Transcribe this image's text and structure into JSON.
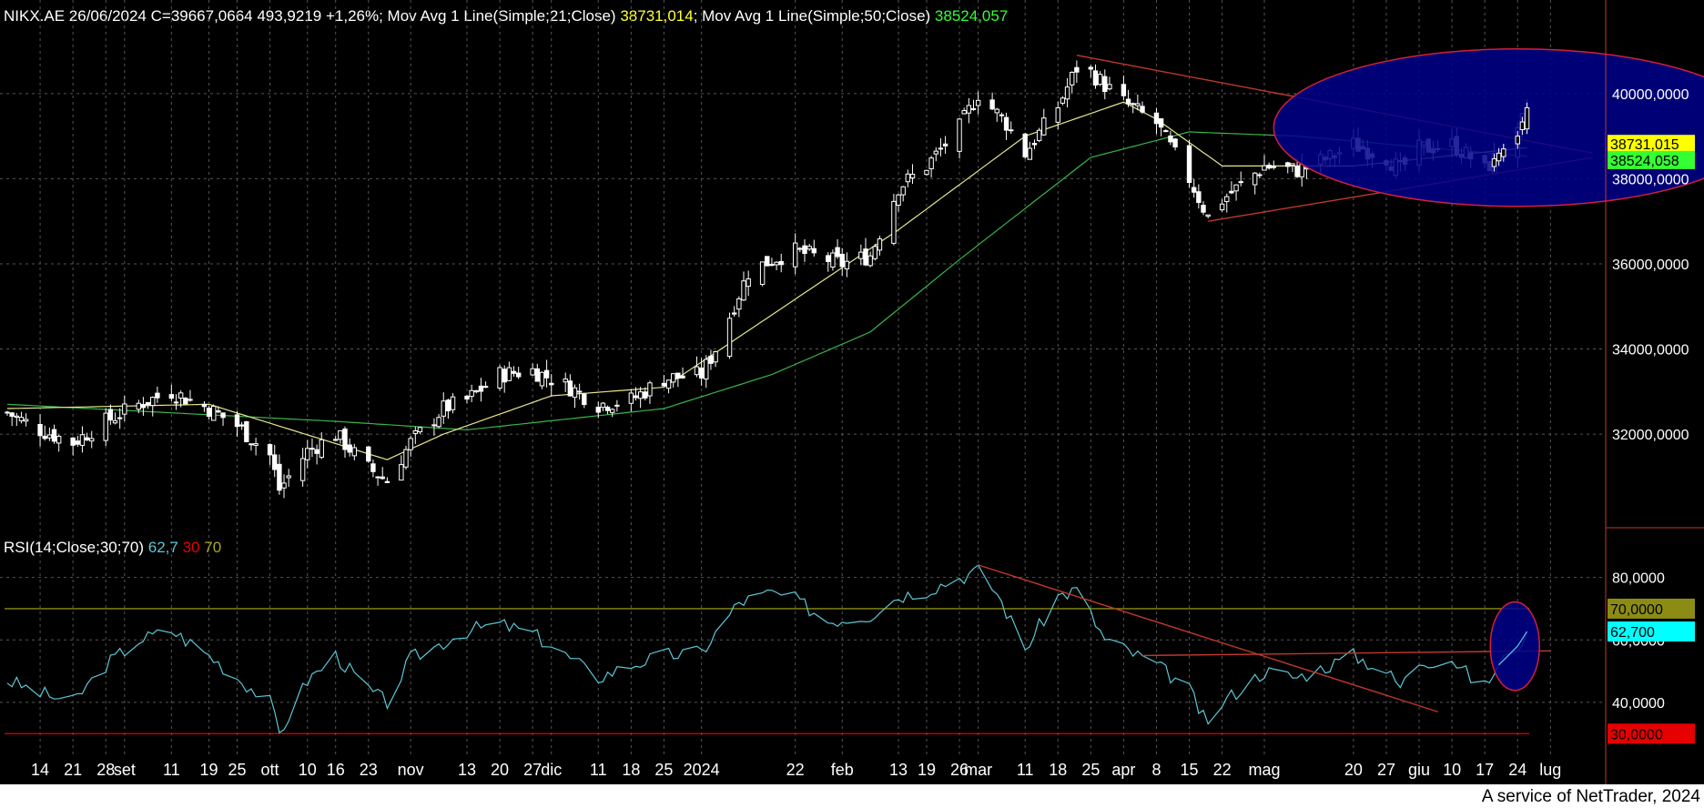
{
  "header": {
    "symbol_line": "NIKX.AE 26/06/2024 C=39667,0664 493,9219 +1,26%",
    "ma21_label": "; Mov Avg 1 Line(Simple;21;Close)",
    "ma21_value": "38731,014",
    "ma50_label": "; Mov Avg 1 Line(Simple;50;Close)",
    "ma50_value": "38524,057"
  },
  "rsi_header": {
    "label": "RSI(14;Close;30;70)",
    "value": "62,7",
    "low": "30",
    "high": "70"
  },
  "footer_text": "A service of NetTrader, 2024",
  "colors": {
    "background": "#000000",
    "candle": "#ffffff",
    "ma21": "#e6e68c",
    "ma50": "#39b54a",
    "trendline": "#c0392b",
    "highlight_fill": "#00008b",
    "highlight_stroke": "#d21f3c",
    "rsi_line": "#5bc8d6",
    "rsi_70": "#8c8c14",
    "rsi_30": "#e60000",
    "grid": "#555555"
  },
  "chart_data": [
    {
      "type": "candlestick",
      "title": "NIKX.AE",
      "ylim": [
        29800,
        41600
      ],
      "y_ticks": [
        32000,
        34000,
        36000,
        38000,
        40000
      ],
      "y_tick_labels": [
        "32000,0000",
        "34000,0000",
        "36000,0000",
        "38000,0000",
        "40000,0000"
      ],
      "grid": true,
      "x_labels": [
        {
          "label": "14",
          "date": "2023-08-14"
        },
        {
          "label": "21",
          "date": "2023-08-21"
        },
        {
          "label": "28",
          "date": "2023-08-28"
        },
        {
          "label": "set",
          "date": "2023-09-01"
        },
        {
          "label": "11",
          "date": "2023-09-11"
        },
        {
          "label": "19",
          "date": "2023-09-19"
        },
        {
          "label": "25",
          "date": "2023-09-25"
        },
        {
          "label": "ott",
          "date": "2023-10-02"
        },
        {
          "label": "10",
          "date": "2023-10-10"
        },
        {
          "label": "16",
          "date": "2023-10-16"
        },
        {
          "label": "23",
          "date": "2023-10-23"
        },
        {
          "label": "nov",
          "date": "2023-11-01"
        },
        {
          "label": "13",
          "date": "2023-11-13"
        },
        {
          "label": "20",
          "date": "2023-11-20"
        },
        {
          "label": "27",
          "date": "2023-11-27"
        },
        {
          "label": "dic",
          "date": "2023-12-01"
        },
        {
          "label": "11",
          "date": "2023-12-11"
        },
        {
          "label": "18",
          "date": "2023-12-18"
        },
        {
          "label": "25",
          "date": "2023-12-25"
        },
        {
          "label": "2024",
          "date": "2024-01-02"
        },
        {
          "label": "22",
          "date": "2024-01-22"
        },
        {
          "label": "feb",
          "date": "2024-02-01"
        },
        {
          "label": "13",
          "date": "2024-02-13"
        },
        {
          "label": "19",
          "date": "2024-02-19"
        },
        {
          "label": "26",
          "date": "2024-02-26"
        },
        {
          "label": "mar",
          "date": "2024-03-01"
        },
        {
          "label": "11",
          "date": "2024-03-11"
        },
        {
          "label": "18",
          "date": "2024-03-18"
        },
        {
          "label": "25",
          "date": "2024-03-25"
        },
        {
          "label": "apr",
          "date": "2024-04-01"
        },
        {
          "label": "8",
          "date": "2024-04-08"
        },
        {
          "label": "15",
          "date": "2024-04-15"
        },
        {
          "label": "22",
          "date": "2024-04-22"
        },
        {
          "label": "mag",
          "date": "2024-05-01"
        },
        {
          "label": "20",
          "date": "2024-05-20"
        },
        {
          "label": "27",
          "date": "2024-05-27"
        },
        {
          "label": "giu",
          "date": "2024-06-03"
        },
        {
          "label": "10",
          "date": "2024-06-10"
        },
        {
          "label": "17",
          "date": "2024-06-17"
        },
        {
          "label": "24",
          "date": "2024-06-24"
        },
        {
          "label": "lug",
          "date": "2024-07-01"
        }
      ],
      "close_anchors": [
        [
          "2023-08-07",
          32500
        ],
        [
          "2023-08-14",
          32100
        ],
        [
          "2023-08-21",
          31800
        ],
        [
          "2023-08-28",
          32300
        ],
        [
          "2023-09-04",
          32700
        ],
        [
          "2023-09-11",
          33000
        ],
        [
          "2023-09-19",
          32600
        ],
        [
          "2023-09-25",
          32200
        ],
        [
          "2023-10-02",
          31500
        ],
        [
          "2023-10-04",
          30700
        ],
        [
          "2023-10-10",
          31600
        ],
        [
          "2023-10-16",
          32000
        ],
        [
          "2023-10-23",
          31200
        ],
        [
          "2023-10-27",
          30900
        ],
        [
          "2023-11-01",
          31800
        ],
        [
          "2023-11-08",
          32600
        ],
        [
          "2023-11-13",
          32800
        ],
        [
          "2023-11-20",
          33400
        ],
        [
          "2023-11-27",
          33500
        ],
        [
          "2023-12-01",
          33300
        ],
        [
          "2023-12-05",
          33100
        ],
        [
          "2023-12-11",
          32700
        ],
        [
          "2023-12-18",
          32800
        ],
        [
          "2023-12-25",
          33300
        ],
        [
          "2024-01-02",
          33400
        ],
        [
          "2024-01-05",
          34000
        ],
        [
          "2024-01-12",
          35800
        ],
        [
          "2024-01-17",
          36100
        ],
        [
          "2024-01-22",
          36300
        ],
        [
          "2024-01-29",
          36100
        ],
        [
          "2024-02-01",
          36000
        ],
        [
          "2024-02-07",
          36200
        ],
        [
          "2024-02-13",
          37800
        ],
        [
          "2024-02-19",
          38300
        ],
        [
          "2024-02-26",
          39200
        ],
        [
          "2024-03-01",
          40000
        ],
        [
          "2024-03-07",
          39300
        ],
        [
          "2024-03-11",
          38600
        ],
        [
          "2024-03-18",
          39700
        ],
        [
          "2024-03-22",
          40600
        ],
        [
          "2024-03-25",
          40500
        ],
        [
          "2024-04-01",
          39800
        ],
        [
          "2024-04-08",
          39300
        ],
        [
          "2024-04-15",
          38000
        ],
        [
          "2024-04-19",
          37100
        ],
        [
          "2024-04-22",
          37500
        ],
        [
          "2024-05-01",
          38300
        ],
        [
          "2024-05-08",
          38200
        ],
        [
          "2024-05-15",
          38500
        ],
        [
          "2024-05-20",
          38800
        ],
        [
          "2024-05-27",
          38500
        ],
        [
          "2024-05-30",
          38200
        ],
        [
          "2024-06-03",
          38700
        ],
        [
          "2024-06-10",
          38800
        ],
        [
          "2024-06-14",
          38500
        ],
        [
          "2024-06-17",
          38200
        ],
        [
          "2024-06-20",
          38600
        ],
        [
          "2024-06-24",
          39000
        ],
        [
          "2024-06-26",
          39667
        ]
      ],
      "last_close": 39667.0664,
      "change": 493.9219,
      "change_pct": "+1,26%",
      "ma21": {
        "name": "Mov Avg 1 Line(Simple;21;Close)",
        "last": 38731.014,
        "anchors": [
          [
            "2023-08-07",
            32600
          ],
          [
            "2023-09-19",
            32700
          ],
          [
            "2023-10-27",
            31400
          ],
          [
            "2023-11-08",
            32000
          ],
          [
            "2023-12-01",
            32900
          ],
          [
            "2023-12-25",
            33100
          ],
          [
            "2024-01-17",
            34800
          ],
          [
            "2024-02-13",
            36800
          ],
          [
            "2024-03-11",
            39000
          ],
          [
            "2024-04-01",
            39800
          ],
          [
            "2024-04-08",
            39400
          ],
          [
            "2024-04-22",
            38300
          ],
          [
            "2024-05-20",
            38300
          ],
          [
            "2024-06-26",
            38731
          ]
        ]
      },
      "ma50": {
        "name": "Mov Avg 1 Line(Simple;50;Close)",
        "last": 38524.057,
        "anchors": [
          [
            "2023-08-07",
            32700
          ],
          [
            "2023-10-16",
            32300
          ],
          [
            "2023-11-13",
            32100
          ],
          [
            "2023-12-25",
            32600
          ],
          [
            "2024-01-17",
            33400
          ],
          [
            "2024-02-07",
            34400
          ],
          [
            "2024-02-26",
            36100
          ],
          [
            "2024-03-25",
            38500
          ],
          [
            "2024-04-15",
            39100
          ],
          [
            "2024-05-08",
            39000
          ],
          [
            "2024-06-26",
            38524
          ]
        ]
      },
      "price_tags": [
        {
          "label": "38731,015",
          "color": "#ffff00"
        },
        {
          "label": "38524,058",
          "color": "#33ff33"
        }
      ],
      "trendlines": [
        {
          "from": [
            "2024-03-22",
            40900
          ],
          "to": [
            "2024-07-10",
            38600
          ]
        },
        {
          "from": [
            "2024-04-19",
            37000
          ],
          "to": [
            "2024-07-10",
            38500
          ]
        }
      ],
      "highlight": {
        "date": "2024-06-24",
        "price": 39200,
        "semi_days": 5,
        "semi_price": 1850
      }
    },
    {
      "type": "line",
      "title": "RSI(14;Close;30;70)",
      "ylim": [
        26,
        86
      ],
      "y_ticks": [
        40,
        60,
        80
      ],
      "y_tick_labels": [
        "40,0000",
        "60,0000",
        "80,0000"
      ],
      "levels": [
        {
          "value": 70,
          "label": "70,0000",
          "color": "#8c8c14"
        },
        {
          "value": 30,
          "label": "30,0000",
          "color": "#e60000"
        }
      ],
      "last": 62.7,
      "last_label": "62,700",
      "anchors": [
        [
          "2023-08-07",
          47
        ],
        [
          "2023-08-14",
          43
        ],
        [
          "2023-08-21",
          40
        ],
        [
          "2023-08-28",
          52
        ],
        [
          "2023-09-04",
          60
        ],
        [
          "2023-09-11",
          63
        ],
        [
          "2023-09-19",
          55
        ],
        [
          "2023-09-25",
          48
        ],
        [
          "2023-10-02",
          40
        ],
        [
          "2023-10-04",
          30
        ],
        [
          "2023-10-10",
          47
        ],
        [
          "2023-10-16",
          55
        ],
        [
          "2023-10-23",
          44
        ],
        [
          "2023-10-27",
          40
        ],
        [
          "2023-11-01",
          54
        ],
        [
          "2023-11-13",
          63
        ],
        [
          "2023-11-20",
          65
        ],
        [
          "2023-11-27",
          62
        ],
        [
          "2023-12-05",
          54
        ],
        [
          "2023-12-11",
          48
        ],
        [
          "2023-12-18",
          52
        ],
        [
          "2023-12-25",
          55
        ],
        [
          "2024-01-02",
          56
        ],
        [
          "2024-01-10",
          72
        ],
        [
          "2024-01-17",
          75
        ],
        [
          "2024-01-22",
          73
        ],
        [
          "2024-01-29",
          66
        ],
        [
          "2024-02-07",
          68
        ],
        [
          "2024-02-13",
          74
        ],
        [
          "2024-02-19",
          76
        ],
        [
          "2024-02-26",
          80
        ],
        [
          "2024-03-01",
          82
        ],
        [
          "2024-03-05",
          75
        ],
        [
          "2024-03-11",
          57
        ],
        [
          "2024-03-18",
          74
        ],
        [
          "2024-03-22",
          76
        ],
        [
          "2024-03-28",
          60
        ],
        [
          "2024-04-08",
          52
        ],
        [
          "2024-04-15",
          44
        ],
        [
          "2024-04-19",
          32
        ],
        [
          "2024-04-22",
          40
        ],
        [
          "2024-05-01",
          50
        ],
        [
          "2024-05-08",
          48
        ],
        [
          "2024-05-15",
          52
        ],
        [
          "2024-05-20",
          55
        ],
        [
          "2024-05-27",
          50
        ],
        [
          "2024-05-30",
          45
        ],
        [
          "2024-06-03",
          53
        ],
        [
          "2024-06-10",
          54
        ],
        [
          "2024-06-14",
          48
        ],
        [
          "2024-06-17",
          45
        ],
        [
          "2024-06-20",
          52
        ],
        [
          "2024-06-24",
          58
        ],
        [
          "2024-06-26",
          62.7
        ]
      ],
      "trendlines": [
        {
          "from": [
            "2024-03-01",
            84
          ],
          "to": [
            "2024-06-07",
            37
          ]
        },
        {
          "from": [
            "2024-04-05",
            55
          ],
          "to": [
            "2024-07-01",
            56.5
          ]
        }
      ],
      "highlight": {
        "date": "2024-06-24",
        "value": 58,
        "semi_days": 3,
        "semi_value": 10.5
      }
    }
  ]
}
